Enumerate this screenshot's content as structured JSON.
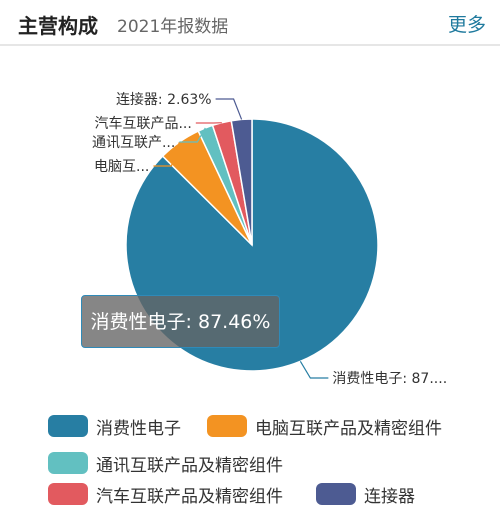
{
  "header": {
    "title": "主营构成",
    "subtitle": "2021年报数据",
    "more_label": "更多"
  },
  "tooltip": {
    "text": "消费性电子: 87.46%"
  },
  "chart_data": {
    "type": "pie",
    "slices": [
      {
        "name": "消费性电子",
        "value": 87.46,
        "color": "#277ea3",
        "label": "消费性电子: 87...."
      },
      {
        "name": "电脑互联产品及精密组件",
        "value": 5.53,
        "color": "#f39322",
        "label": "电脑互..."
      },
      {
        "name": "通讯互联产品及精密组件",
        "value": 1.94,
        "color": "#62c0c1",
        "label": "通讯互联产..."
      },
      {
        "name": "汽车互联产品及精密组件",
        "value": 2.44,
        "color": "#e25a5f",
        "label": "汽车互联产品..."
      },
      {
        "name": "连接器",
        "value": 2.63,
        "color": "#4d5b92",
        "label": "连接器: 2.63%"
      }
    ],
    "legend_position": "bottom"
  },
  "legend": {
    "items": [
      {
        "label": "消费性电子",
        "color": "#277ea3"
      },
      {
        "label": "电脑互联产品及精密组件",
        "color": "#f39322"
      },
      {
        "label": "通讯互联产品及精密组件",
        "color": "#62c0c1"
      },
      {
        "label": "汽车互联产品及精密组件",
        "color": "#e25a5f"
      },
      {
        "label": "连接器",
        "color": "#4d5b92"
      }
    ]
  }
}
